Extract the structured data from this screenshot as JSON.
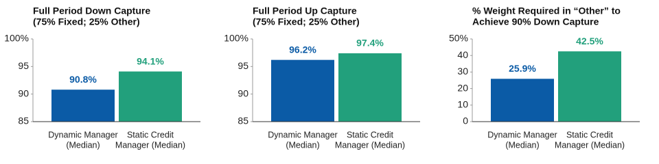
{
  "chart_data": [
    {
      "type": "bar",
      "title": [
        "Full Period Down Capture",
        "(75% Fixed; 25% Other)"
      ],
      "categories": [
        [
          "Dynamic Manager",
          "(Median)"
        ],
        [
          "Static Credit",
          "Manager (Median)"
        ]
      ],
      "values": [
        90.8,
        94.1
      ],
      "value_labels": [
        "90.8%",
        "94.1%"
      ],
      "colors": [
        "#0b5ba6",
        "#22a07c"
      ],
      "ylim": [
        85,
        100
      ],
      "yticks": [
        85,
        90,
        95,
        {
          "value": 100,
          "label": "100%"
        }
      ],
      "grid": false
    },
    {
      "type": "bar",
      "title": [
        "Full Period Up Capture",
        "(75% Fixed; 25% Other)"
      ],
      "categories": [
        [
          "Dynamic Manager",
          "(Median)"
        ],
        [
          "Static Credit",
          "Manager (Median)"
        ]
      ],
      "values": [
        96.2,
        97.4
      ],
      "value_labels": [
        "96.2%",
        "97.4%"
      ],
      "colors": [
        "#0b5ba6",
        "#22a07c"
      ],
      "ylim": [
        85,
        100
      ],
      "yticks": [
        85,
        90,
        95,
        {
          "value": 100,
          "label": "100%"
        }
      ],
      "grid": false
    },
    {
      "type": "bar",
      "title": [
        "% Weight Required in “Other” to",
        "Achieve 90% Down Capture"
      ],
      "categories": [
        [
          "Dynamic Manager",
          "(Median)"
        ],
        [
          "Static Credit",
          "Manager (Median)"
        ]
      ],
      "values": [
        25.9,
        42.5
      ],
      "value_labels": [
        "25.9%",
        "42.5%"
      ],
      "colors": [
        "#0b5ba6",
        "#22a07c"
      ],
      "ylim": [
        0,
        50
      ],
      "yticks": [
        0,
        10,
        20,
        30,
        40,
        {
          "value": 50,
          "label": "50%"
        }
      ],
      "grid": false
    }
  ]
}
